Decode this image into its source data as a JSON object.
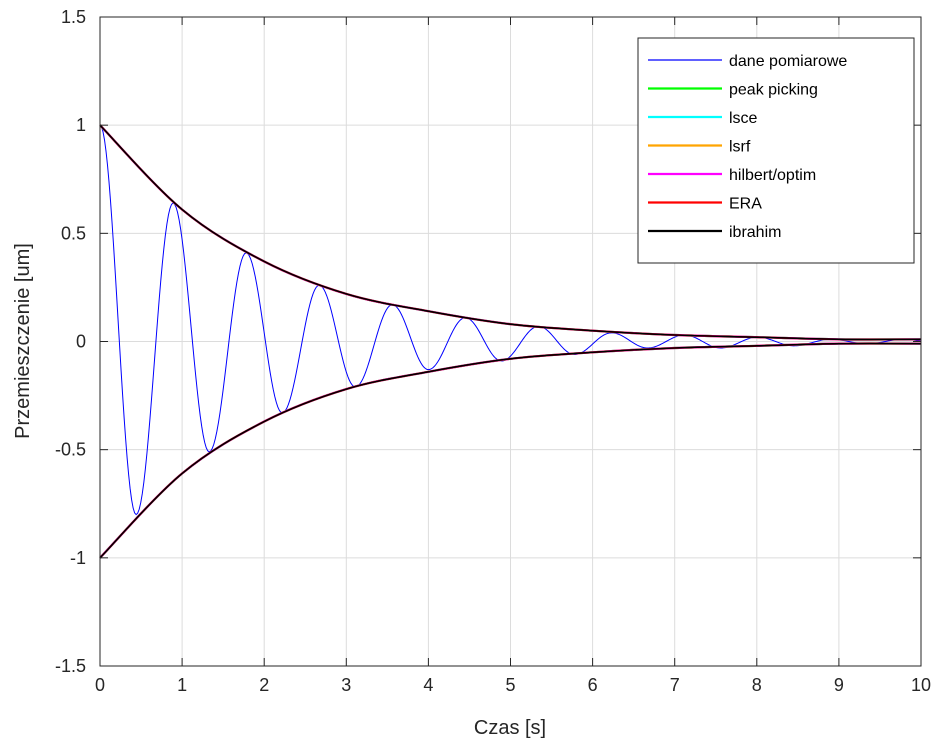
{
  "chart_data": {
    "type": "line",
    "title": "",
    "xlabel": "Czas [s]",
    "ylabel": "Przemieszczenie [um]",
    "xlim": [
      0,
      10
    ],
    "ylim": [
      -1.5,
      1.5
    ],
    "xticks": [
      0,
      1,
      2,
      3,
      4,
      5,
      6,
      7,
      8,
      9,
      10
    ],
    "xtick_labels": [
      "0",
      "1",
      "2",
      "3",
      "4",
      "5",
      "6",
      "7",
      "8",
      "9",
      "10"
    ],
    "yticks": [
      -1.5,
      -1,
      -0.5,
      0,
      0.5,
      1,
      1.5
    ],
    "ytick_labels": [
      "-1.5",
      "-1",
      "-0.5",
      "0",
      "0.5",
      "1",
      "1.5"
    ],
    "grid": true,
    "legend_position": "top-right",
    "signal": {
      "x": [
        0,
        0.44,
        0.89,
        1.33,
        1.78,
        2.22,
        2.67,
        3.11,
        3.56,
        4.0,
        4.45,
        4.89,
        5.34,
        5.78,
        6.23,
        6.67,
        7.12,
        7.56,
        8.01,
        8.45,
        8.9,
        9.34,
        9.79
      ],
      "y": [
        1.0,
        -0.8,
        0.64,
        -0.51,
        0.41,
        -0.33,
        0.26,
        -0.21,
        0.17,
        -0.13,
        0.11,
        -0.09,
        0.07,
        -0.06,
        0.04,
        -0.03,
        0.03,
        -0.03,
        0.02,
        -0.02,
        0.01,
        -0.01,
        0.01
      ]
    },
    "envelope": {
      "x": [
        0,
        1,
        2,
        3,
        4,
        5,
        6,
        7,
        8,
        9,
        10
      ],
      "upper": [
        1.0,
        0.61,
        0.37,
        0.22,
        0.14,
        0.08,
        0.05,
        0.03,
        0.02,
        0.01,
        0.01
      ],
      "lower": [
        -1.0,
        -0.61,
        -0.37,
        -0.22,
        -0.14,
        -0.08,
        -0.05,
        -0.03,
        -0.02,
        -0.01,
        -0.01
      ]
    },
    "series": [
      {
        "name": "dane pomiarowe",
        "color": "#0000ff"
      },
      {
        "name": "peak picking",
        "color": "#00ff00"
      },
      {
        "name": "lsce",
        "color": "#00ffff"
      },
      {
        "name": "lsrf",
        "color": "#ffa500"
      },
      {
        "name": "hilbert/optim",
        "color": "#ff00ff"
      },
      {
        "name": "ERA",
        "color": "#ff0000"
      },
      {
        "name": "ibrahim",
        "color": "#000000"
      }
    ]
  }
}
